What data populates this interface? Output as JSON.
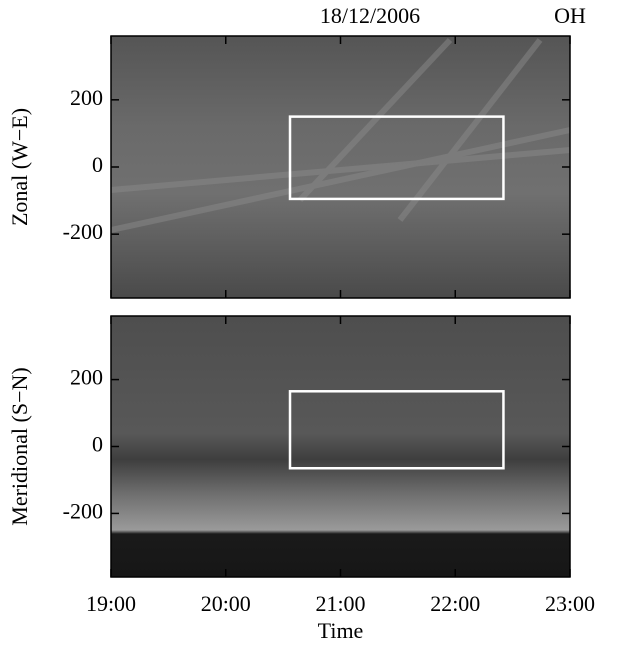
{
  "chart_data": [
    {
      "type": "image",
      "title": "18/12/2006",
      "annotation": "OH",
      "ylabel": "Zonal (W−E)",
      "xlim": [
        19,
        23
      ],
      "ylim": [
        -390,
        390
      ],
      "yticks": [
        -200,
        0,
        200
      ],
      "box": {
        "x": [
          20.56,
          22.42
        ],
        "y": [
          -95,
          150
        ]
      },
      "box_color": "#ffffff"
    },
    {
      "type": "image",
      "ylabel": "Meridional (S−N)",
      "xlabel": "Time",
      "xlim": [
        19,
        23
      ],
      "ylim": [
        -390,
        390
      ],
      "yticks": [
        -200,
        0,
        200
      ],
      "xticks": [
        {
          "value": 19,
          "label": "19:00"
        },
        {
          "value": 20,
          "label": "20:00"
        },
        {
          "value": 21,
          "label": "21:00"
        },
        {
          "value": 22,
          "label": "22:00"
        },
        {
          "value": 23,
          "label": "23:00"
        }
      ],
      "box": {
        "x": [
          20.56,
          22.42
        ],
        "y": [
          -65,
          165
        ]
      },
      "box_color": "#ffffff"
    }
  ]
}
